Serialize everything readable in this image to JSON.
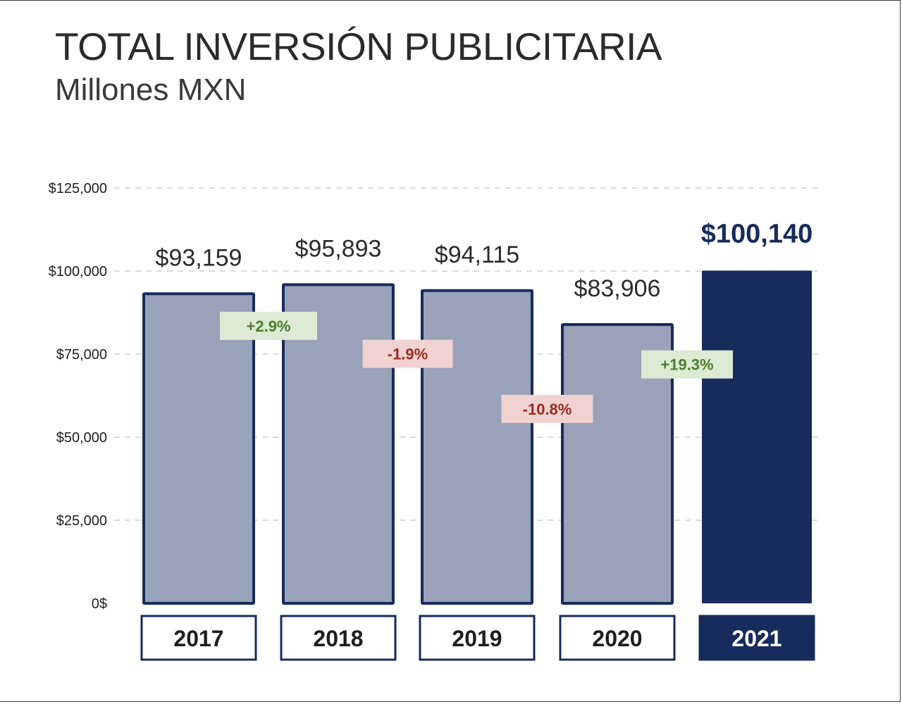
{
  "title": "TOTAL INVERSIÓN PUBLICITARIA",
  "subtitle": "Millones MXN",
  "colors": {
    "bar_fill": "#98a2b8",
    "bar_border": "#172c5c",
    "highlight_fill": "#172c5c",
    "positive_bg": "#dcebd3",
    "positive_text": "#4a7d2c",
    "negative_bg": "#f0d3d1",
    "negative_text": "#9b2a24",
    "grid": "#cfcfcf",
    "text": "#2b2b2b"
  },
  "chart_data": {
    "type": "bar",
    "title": "TOTAL INVERSIÓN PUBLICITARIA",
    "subtitle": "Millones MXN",
    "categories": [
      "2017",
      "2018",
      "2019",
      "2020",
      "2021"
    ],
    "values": [
      93159,
      95893,
      94115,
      83906,
      100140
    ],
    "value_labels": [
      "$93,159",
      "$95,893",
      "$94,115",
      "$83,906",
      "$100,140"
    ],
    "highlight_index": 4,
    "ylim": [
      0,
      125000
    ],
    "y_ticks": [
      0,
      25000,
      50000,
      75000,
      100000,
      125000
    ],
    "y_tick_labels": [
      "0$",
      "$25,000",
      "$50,000",
      "$75,000",
      "$100,000",
      "$125,000"
    ],
    "grid": true,
    "changes": [
      {
        "label": "+2.9%",
        "direction": "positive",
        "from": "2017",
        "to": "2018"
      },
      {
        "label": "-1.9%",
        "direction": "negative",
        "from": "2018",
        "to": "2019"
      },
      {
        "label": "-10.8%",
        "direction": "negative",
        "from": "2019",
        "to": "2020"
      },
      {
        "label": "+19.3%",
        "direction": "positive",
        "from": "2020",
        "to": "2021"
      }
    ]
  }
}
